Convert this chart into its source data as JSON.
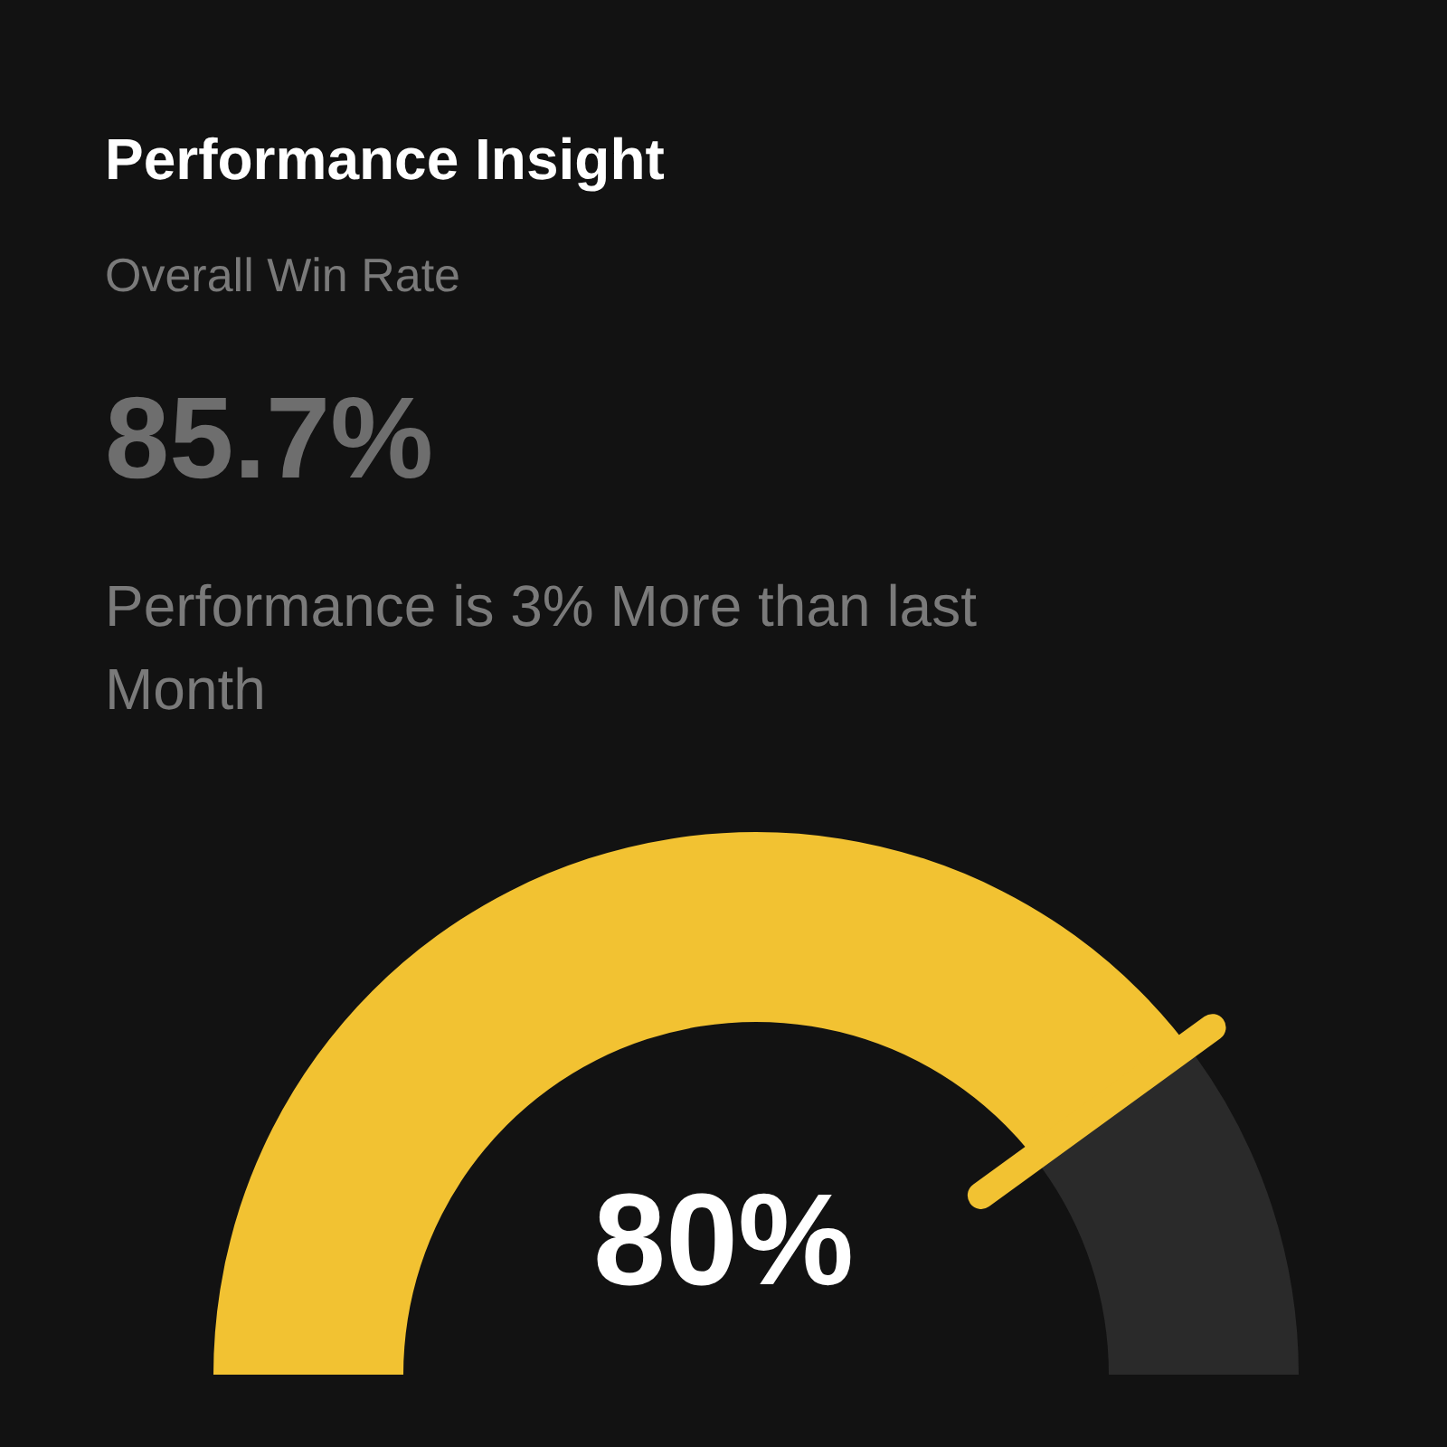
{
  "chart_data": {
    "type": "donut",
    "title": "Performance Insight",
    "subtitle": "Overall Win Rate",
    "annotations": [
      "85.7%",
      "Performance is 3% More than last Month"
    ],
    "categories": [
      null,
      null
    ],
    "values": [
      80,
      20
    ],
    "colors": [
      "#f2c232",
      "#2a2a2a"
    ],
    "value_labels": [
      "80%",
      null
    ]
  }
}
